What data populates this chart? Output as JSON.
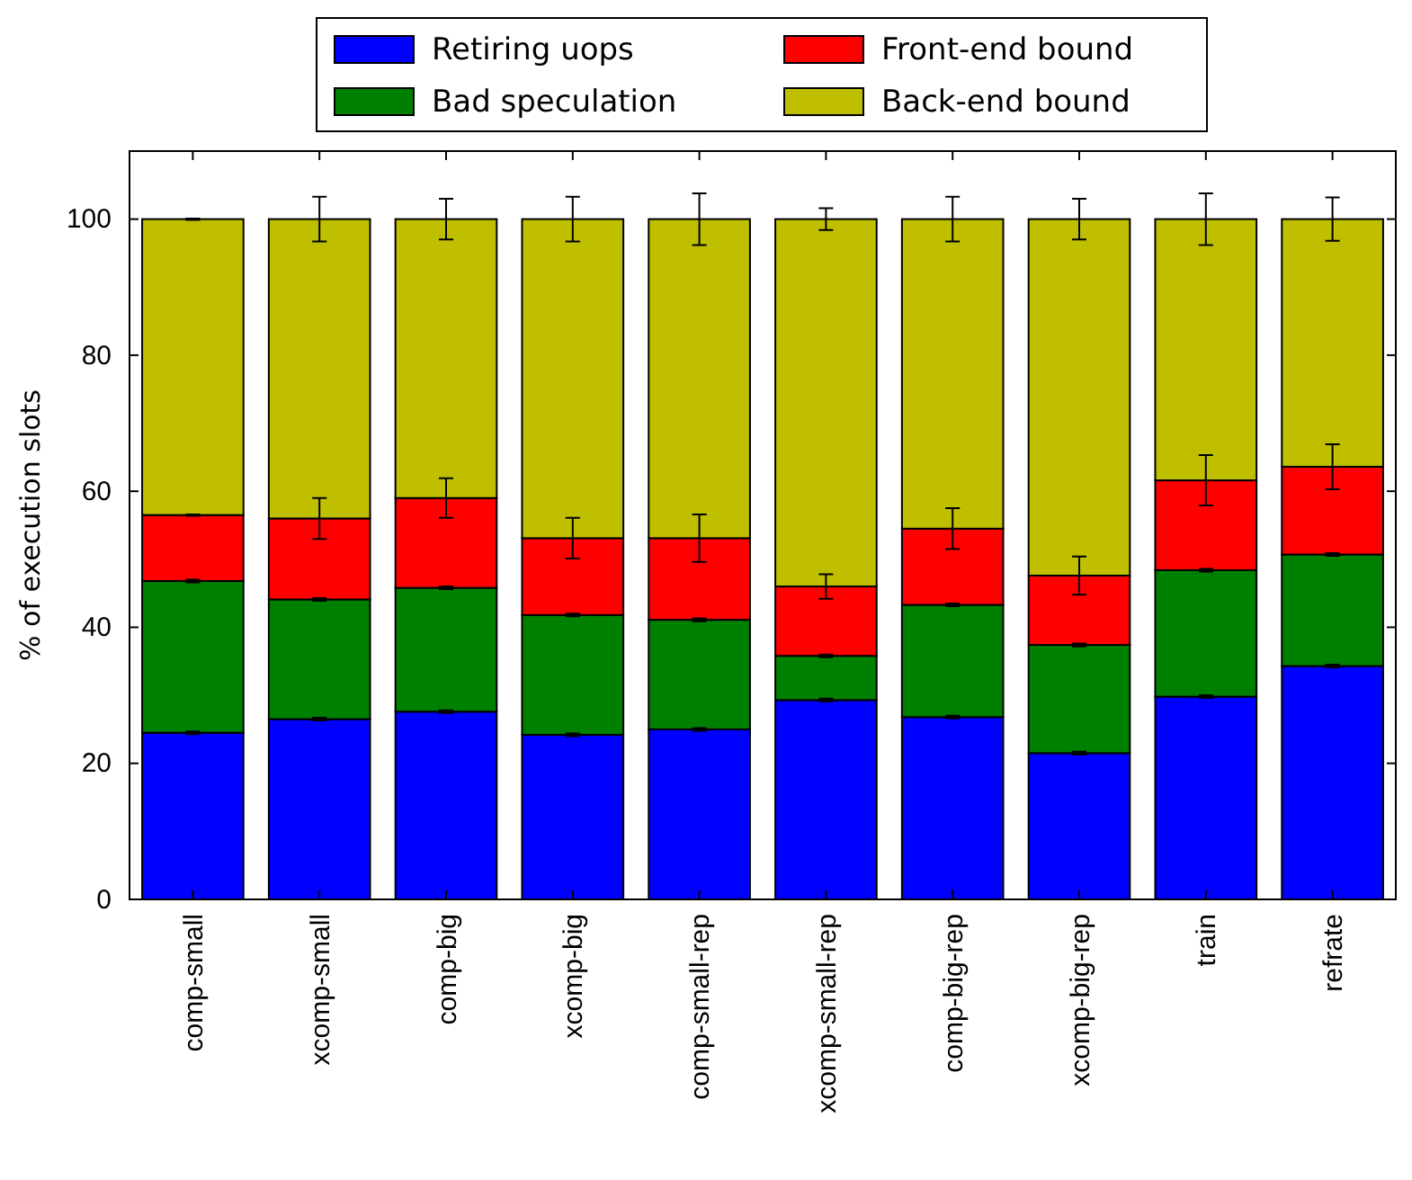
{
  "chart_data": {
    "type": "bar",
    "stacked": true,
    "ylabel": "% of execution slots",
    "categories": [
      "comp-small",
      "xcomp-small",
      "comp-big",
      "xcomp-big",
      "comp-small-rep",
      "xcomp-small-rep",
      "comp-big-rep",
      "xcomp-big-rep",
      "train",
      "refrate"
    ],
    "series": [
      {
        "name": "Retiring uops",
        "color": "#0000ff",
        "values": [
          24.5,
          26.5,
          27.6,
          24.2,
          25.0,
          29.3,
          26.8,
          21.5,
          29.8,
          34.3
        ],
        "errors": [
          0.2,
          0.2,
          0.2,
          0.2,
          0.2,
          0.2,
          0.2,
          0.2,
          0.2,
          0.2
        ]
      },
      {
        "name": "Bad speculation",
        "color": "#008000",
        "values": [
          22.3,
          17.6,
          18.2,
          17.6,
          16.1,
          6.5,
          16.5,
          15.9,
          18.6,
          16.4
        ],
        "errors": [
          0.2,
          0.2,
          0.2,
          0.2,
          0.2,
          0.2,
          0.2,
          0.2,
          0.2,
          0.2
        ]
      },
      {
        "name": "Front-end bound",
        "color": "#ff0000",
        "values": [
          9.7,
          11.9,
          13.2,
          11.3,
          12.0,
          10.2,
          11.2,
          10.2,
          13.2,
          12.9
        ],
        "errors": [
          0.1,
          3.0,
          2.9,
          3.0,
          3.5,
          1.8,
          3.0,
          2.8,
          3.7,
          3.3
        ]
      },
      {
        "name": "Back-end bound",
        "color": "#bfbf00",
        "values": [
          43.5,
          44.0,
          41.0,
          46.9,
          46.9,
          54.0,
          45.5,
          52.4,
          38.4,
          36.4
        ],
        "errors": [
          0.1,
          3.3,
          3.0,
          3.3,
          3.8,
          1.6,
          3.3,
          3.0,
          3.8,
          3.2
        ]
      }
    ],
    "ylim": [
      0,
      110
    ],
    "yticks": [
      0,
      20,
      40,
      60,
      80,
      100
    ],
    "grid": false,
    "legend": "top"
  }
}
